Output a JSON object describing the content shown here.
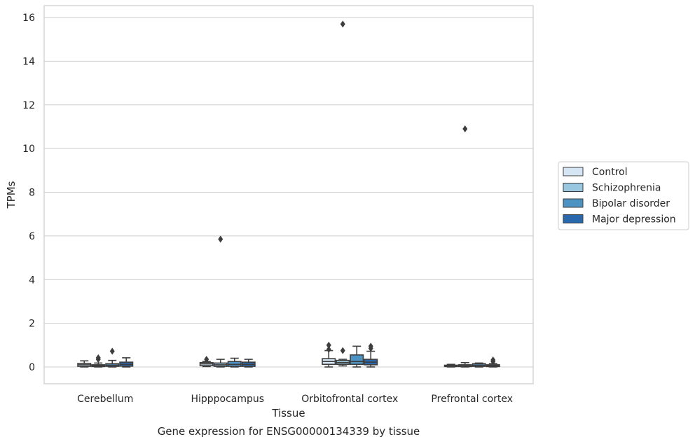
{
  "chart_data": {
    "type": "box",
    "xlabel": "Tissue",
    "ylabel": "TPMs",
    "caption": "Gene expression for ENSG00000134339 by tissue",
    "ylim": [
      -0.75,
      16.5
    ],
    "yticks": [
      0,
      2,
      4,
      6,
      8,
      10,
      12,
      14,
      16
    ],
    "grid": "horizontal",
    "legend_position": "right",
    "categories": [
      "Cerebellum",
      "Hipppocampus",
      "Orbitofrontal cortex",
      "Prefrontal cortex"
    ],
    "series": [
      {
        "name": "Control",
        "color": "#d6e5f3",
        "boxes": [
          {
            "whislo": 0.0,
            "q1": 0.03,
            "med": 0.1,
            "q3": 0.16,
            "whishi": 0.28,
            "fliers": []
          },
          {
            "whislo": 0.02,
            "q1": 0.06,
            "med": 0.14,
            "q3": 0.2,
            "whishi": 0.25,
            "fliers": [
              0.35
            ]
          },
          {
            "whislo": 0.0,
            "q1": 0.12,
            "med": 0.25,
            "q3": 0.38,
            "whishi": 0.75,
            "fliers": [
              0.8,
              1.0
            ]
          },
          {
            "whislo": 0.0,
            "q1": 0.02,
            "med": 0.05,
            "q3": 0.08,
            "whishi": 0.12,
            "fliers": []
          }
        ]
      },
      {
        "name": "Schizophrenia",
        "color": "#9ac7e0",
        "boxes": [
          {
            "whislo": 0.0,
            "q1": 0.02,
            "med": 0.06,
            "q3": 0.1,
            "whishi": 0.18,
            "fliers": [
              0.35,
              0.42
            ]
          },
          {
            "whislo": 0.0,
            "q1": 0.03,
            "med": 0.1,
            "q3": 0.18,
            "whishi": 0.35,
            "fliers": [
              5.85
            ]
          },
          {
            "whislo": 0.05,
            "q1": 0.12,
            "med": 0.2,
            "q3": 0.3,
            "whishi": 0.35,
            "fliers": [
              0.75,
              15.7
            ]
          },
          {
            "whislo": 0.0,
            "q1": 0.02,
            "med": 0.05,
            "q3": 0.1,
            "whishi": 0.2,
            "fliers": [
              10.9
            ]
          }
        ]
      },
      {
        "name": "Bipolar disorder",
        "color": "#4c93c3",
        "boxes": [
          {
            "whislo": 0.0,
            "q1": 0.03,
            "med": 0.08,
            "q3": 0.15,
            "whishi": 0.3,
            "fliers": [
              0.72
            ]
          },
          {
            "whislo": 0.0,
            "q1": 0.03,
            "med": 0.12,
            "q3": 0.25,
            "whishi": 0.4,
            "fliers": []
          },
          {
            "whislo": 0.0,
            "q1": 0.12,
            "med": 0.25,
            "q3": 0.55,
            "whishi": 0.95,
            "fliers": []
          },
          {
            "whislo": 0.0,
            "q1": 0.03,
            "med": 0.08,
            "q3": 0.15,
            "whishi": 0.18,
            "fliers": []
          }
        ]
      },
      {
        "name": "Major depression",
        "color": "#2a68ad",
        "boxes": [
          {
            "whislo": 0.0,
            "q1": 0.04,
            "med": 0.12,
            "q3": 0.22,
            "whishi": 0.42,
            "fliers": []
          },
          {
            "whislo": 0.0,
            "q1": 0.03,
            "med": 0.12,
            "q3": 0.22,
            "whishi": 0.35,
            "fliers": []
          },
          {
            "whislo": 0.0,
            "q1": 0.1,
            "med": 0.22,
            "q3": 0.35,
            "whishi": 0.72,
            "fliers": [
              0.85,
              0.95
            ]
          },
          {
            "whislo": 0.0,
            "q1": 0.02,
            "med": 0.06,
            "q3": 0.1,
            "whishi": 0.15,
            "fliers": [
              0.25,
              0.32
            ]
          }
        ]
      }
    ]
  }
}
